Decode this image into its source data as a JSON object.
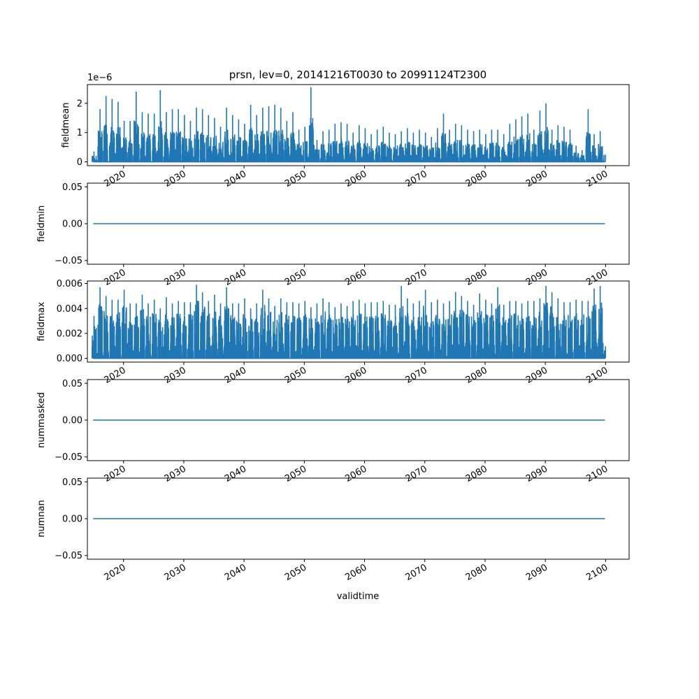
{
  "figure": {
    "title": "prsn, lev=0, 20141216T0030 to 20991124T2300",
    "xlabel": "validtime",
    "line_color": "#1f77b4"
  },
  "chart_data": [
    {
      "type": "line",
      "ylabel": "fieldmean",
      "offset_label": "1e−6",
      "x_ticks": [
        "2020",
        "2030",
        "2040",
        "2050",
        "2060",
        "2070",
        "2080",
        "2090",
        "2100"
      ],
      "x_tick_values": [
        2020,
        2030,
        2040,
        2050,
        2060,
        2070,
        2080,
        2090,
        2100
      ],
      "y_ticks": [
        "0",
        "1",
        "2"
      ],
      "y_tick_values": [
        0,
        1,
        2
      ],
      "xlim": [
        2014.0,
        2103.9
      ],
      "ylim": [
        -0.13,
        2.64
      ],
      "x_range": [
        2014.96,
        2099.9
      ],
      "pattern": "seasonal-spikes",
      "peaks": [
        [
          2015.1,
          0.35
        ],
        [
          2016.1,
          1.8
        ],
        [
          2017.1,
          2.25
        ],
        [
          2018.1,
          2.15
        ],
        [
          2019.1,
          2.05
        ],
        [
          2020.1,
          1.4
        ],
        [
          2021.1,
          1.4
        ],
        [
          2022.1,
          2.4
        ],
        [
          2023.1,
          1.7
        ],
        [
          2024.1,
          1.65
        ],
        [
          2025.1,
          1.65
        ],
        [
          2026.1,
          2.45
        ],
        [
          2027.1,
          1.7
        ],
        [
          2028.1,
          1.8
        ],
        [
          2029.1,
          1.8
        ],
        [
          2030.1,
          1.6
        ],
        [
          2031.1,
          1.4
        ],
        [
          2032.1,
          1.85
        ],
        [
          2033.1,
          1.8
        ],
        [
          2034.1,
          1.6
        ],
        [
          2035.1,
          1.5
        ],
        [
          2036.1,
          1.2
        ],
        [
          2037.1,
          1.85
        ],
        [
          2038.1,
          1.6
        ],
        [
          2039.1,
          1.45
        ],
        [
          2040.1,
          1.3
        ],
        [
          2041.1,
          1.95
        ],
        [
          2042.1,
          1.6
        ],
        [
          2043.1,
          1.85
        ],
        [
          2044.1,
          1.9
        ],
        [
          2045.1,
          1.95
        ],
        [
          2046.1,
          1.85
        ],
        [
          2047.1,
          1.4
        ],
        [
          2048.1,
          1.7
        ],
        [
          2049.1,
          1.1
        ],
        [
          2050.1,
          1.2
        ],
        [
          2051.1,
          2.55
        ],
        [
          2052.1,
          0.75
        ],
        [
          2053.1,
          1.05
        ],
        [
          2054.1,
          1.1
        ],
        [
          2055.1,
          1.3
        ],
        [
          2056.1,
          1.35
        ],
        [
          2057.1,
          1.3
        ],
        [
          2058.1,
          1.0
        ],
        [
          2059.1,
          1.25
        ],
        [
          2060.1,
          1.15
        ],
        [
          2061.1,
          0.95
        ],
        [
          2062.1,
          1.1
        ],
        [
          2063.1,
          1.2
        ],
        [
          2064.1,
          1.0
        ],
        [
          2065.1,
          0.95
        ],
        [
          2066.1,
          1.05
        ],
        [
          2067.1,
          1.15
        ],
        [
          2068.1,
          1.0
        ],
        [
          2069.1,
          1.1
        ],
        [
          2070.1,
          1.0
        ],
        [
          2071.1,
          0.85
        ],
        [
          2072.1,
          1.15
        ],
        [
          2073.1,
          1.65
        ],
        [
          2074.1,
          1.1
        ],
        [
          2075.1,
          1.3
        ],
        [
          2076.1,
          1.25
        ],
        [
          2077.1,
          1.1
        ],
        [
          2078.1,
          1.05
        ],
        [
          2079.1,
          1.1
        ],
        [
          2080.1,
          0.95
        ],
        [
          2081.1,
          1.1
        ],
        [
          2082.1,
          1.1
        ],
        [
          2083.1,
          0.95
        ],
        [
          2084.1,
          1.3
        ],
        [
          2085.1,
          1.45
        ],
        [
          2086.1,
          1.55
        ],
        [
          2087.1,
          1.65
        ],
        [
          2088.1,
          1.1
        ],
        [
          2089.1,
          1.75
        ],
        [
          2090.1,
          2.0
        ],
        [
          2091.1,
          1.1
        ],
        [
          2092.1,
          1.25
        ],
        [
          2093.1,
          1.2
        ],
        [
          2094.1,
          1.1
        ],
        [
          2095.1,
          0.55
        ],
        [
          2096.1,
          0.4
        ],
        [
          2097.1,
          1.8
        ],
        [
          2098.1,
          0.95
        ],
        [
          2099.1,
          1.05
        ]
      ]
    },
    {
      "type": "line",
      "ylabel": "fieldmin",
      "x_ticks": [
        "2020",
        "2030",
        "2040",
        "2050",
        "2060",
        "2070",
        "2080",
        "2090",
        "2100"
      ],
      "x_tick_values": [
        2020,
        2030,
        2040,
        2050,
        2060,
        2070,
        2080,
        2090,
        2100
      ],
      "y_ticks": [
        "−0.05",
        "0.00",
        "0.05"
      ],
      "y_tick_values": [
        -0.05,
        0,
        0.05
      ],
      "xlim": [
        2014.0,
        2103.9
      ],
      "ylim": [
        -0.055,
        0.055
      ],
      "x_range": [
        2014.96,
        2099.9
      ],
      "pattern": "constant",
      "constant": 0.0
    },
    {
      "type": "line",
      "ylabel": "fieldmax",
      "x_ticks": [
        "2020",
        "2030",
        "2040",
        "2050",
        "2060",
        "2070",
        "2080",
        "2090",
        "2100"
      ],
      "x_tick_values": [
        2020,
        2030,
        2040,
        2050,
        2060,
        2070,
        2080,
        2090,
        2100
      ],
      "y_ticks": [
        "0.000",
        "0.002",
        "0.004",
        "0.006"
      ],
      "y_tick_values": [
        0,
        0.002,
        0.004,
        0.006
      ],
      "xlim": [
        2014.0,
        2103.9
      ],
      "ylim": [
        -0.0003,
        0.0062
      ],
      "x_range": [
        2014.96,
        2099.9
      ],
      "pattern": "seasonal-spikes",
      "peaks": [
        [
          2015.1,
          0.0034
        ],
        [
          2016.1,
          0.0057
        ],
        [
          2017.1,
          0.005
        ],
        [
          2018.1,
          0.0047
        ],
        [
          2019.1,
          0.0047
        ],
        [
          2020.1,
          0.0055
        ],
        [
          2021.1,
          0.0044
        ],
        [
          2022.1,
          0.0044
        ],
        [
          2023.1,
          0.0051
        ],
        [
          2024.1,
          0.0044
        ],
        [
          2025.1,
          0.0047
        ],
        [
          2026.1,
          0.004
        ],
        [
          2027.1,
          0.0049
        ],
        [
          2028.1,
          0.0044
        ],
        [
          2029.1,
          0.0046
        ],
        [
          2030.1,
          0.0045
        ],
        [
          2031.1,
          0.0045
        ],
        [
          2032.1,
          0.0059
        ],
        [
          2033.1,
          0.0053
        ],
        [
          2034.1,
          0.0046
        ],
        [
          2035.1,
          0.0051
        ],
        [
          2036.1,
          0.0044
        ],
        [
          2037.1,
          0.0057
        ],
        [
          2038.1,
          0.0044
        ],
        [
          2039.1,
          0.0044
        ],
        [
          2040.1,
          0.0048
        ],
        [
          2041.1,
          0.004
        ],
        [
          2042.1,
          0.0044
        ],
        [
          2043.1,
          0.0055
        ],
        [
          2044.1,
          0.0048
        ],
        [
          2045.1,
          0.0042
        ],
        [
          2046.1,
          0.0048
        ],
        [
          2047.1,
          0.0045
        ],
        [
          2048.1,
          0.0045
        ],
        [
          2049.1,
          0.0044
        ],
        [
          2050.1,
          0.0046
        ],
        [
          2051.1,
          0.0041
        ],
        [
          2052.1,
          0.0044
        ],
        [
          2053.1,
          0.0048
        ],
        [
          2054.1,
          0.0045
        ],
        [
          2055.1,
          0.0041
        ],
        [
          2056.1,
          0.0044
        ],
        [
          2057.1,
          0.0042
        ],
        [
          2058.1,
          0.0046
        ],
        [
          2059.1,
          0.0047
        ],
        [
          2060.1,
          0.0044
        ],
        [
          2061.1,
          0.0045
        ],
        [
          2062.1,
          0.0045
        ],
        [
          2063.1,
          0.0046
        ],
        [
          2064.1,
          0.0043
        ],
        [
          2065.1,
          0.0043
        ],
        [
          2066.1,
          0.0058
        ],
        [
          2067.1,
          0.0048
        ],
        [
          2068.1,
          0.0044
        ],
        [
          2069.1,
          0.0046
        ],
        [
          2070.1,
          0.0055
        ],
        [
          2071.1,
          0.0045
        ],
        [
          2072.1,
          0.0047
        ],
        [
          2073.1,
          0.0044
        ],
        [
          2074.1,
          0.0046
        ],
        [
          2075.1,
          0.0053
        ],
        [
          2076.1,
          0.005
        ],
        [
          2077.1,
          0.0046
        ],
        [
          2078.1,
          0.0043
        ],
        [
          2079.1,
          0.0052
        ],
        [
          2080.1,
          0.0047
        ],
        [
          2081.1,
          0.0044
        ],
        [
          2082.1,
          0.0057
        ],
        [
          2083.1,
          0.0043
        ],
        [
          2084.1,
          0.0046
        ],
        [
          2085.1,
          0.0046
        ],
        [
          2086.1,
          0.0044
        ],
        [
          2087.1,
          0.0046
        ],
        [
          2088.1,
          0.0046
        ],
        [
          2089.1,
          0.0048
        ],
        [
          2090.1,
          0.0058
        ],
        [
          2091.1,
          0.0053
        ],
        [
          2092.1,
          0.0048
        ],
        [
          2093.1,
          0.0045
        ],
        [
          2094.1,
          0.0045
        ],
        [
          2095.1,
          0.0047
        ],
        [
          2096.1,
          0.0046
        ],
        [
          2097.1,
          0.0046
        ],
        [
          2098.1,
          0.0056
        ],
        [
          2099.1,
          0.0058
        ]
      ]
    },
    {
      "type": "line",
      "ylabel": "nummasked",
      "x_ticks": [
        "2020",
        "2030",
        "2040",
        "2050",
        "2060",
        "2070",
        "2080",
        "2090",
        "2100"
      ],
      "x_tick_values": [
        2020,
        2030,
        2040,
        2050,
        2060,
        2070,
        2080,
        2090,
        2100
      ],
      "y_ticks": [
        "−0.05",
        "0.00",
        "0.05"
      ],
      "y_tick_values": [
        -0.05,
        0,
        0.05
      ],
      "xlim": [
        2014.0,
        2103.9
      ],
      "ylim": [
        -0.055,
        0.055
      ],
      "x_range": [
        2014.96,
        2099.9
      ],
      "pattern": "constant",
      "constant": 0.0
    },
    {
      "type": "line",
      "ylabel": "numnan",
      "x_ticks": [
        "2020",
        "2030",
        "2040",
        "2050",
        "2060",
        "2070",
        "2080",
        "2090",
        "2100"
      ],
      "x_tick_values": [
        2020,
        2030,
        2040,
        2050,
        2060,
        2070,
        2080,
        2090,
        2100
      ],
      "y_ticks": [
        "−0.05",
        "0.00",
        "0.05"
      ],
      "y_tick_values": [
        -0.05,
        0,
        0.05
      ],
      "xlim": [
        2014.0,
        2103.9
      ],
      "ylim": [
        -0.055,
        0.055
      ],
      "x_range": [
        2014.96,
        2099.9
      ],
      "pattern": "constant",
      "constant": 0.0
    }
  ]
}
